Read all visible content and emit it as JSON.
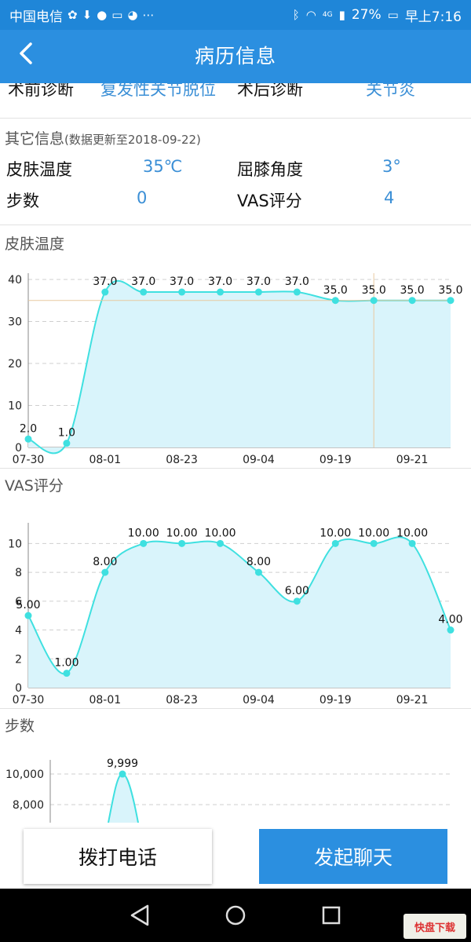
{
  "status_bar": {
    "carrier": "中国电信",
    "battery": "27%",
    "network": "4G",
    "time": "早上7:16"
  },
  "header": {
    "back_icon": "chevron-left-icon",
    "title": "病历信息"
  },
  "diagnosis": {
    "pre_label": "术前诊断",
    "pre_value": "复发性关节脱位",
    "post_label": "术后诊断",
    "post_value": "关节炎"
  },
  "other_info": {
    "title": "其它信息",
    "update_note": "(数据更新至2018-09-22)",
    "items": [
      {
        "label": "皮肤温度",
        "value": "35℃"
      },
      {
        "label": "屈膝角度",
        "value": "3°"
      },
      {
        "label": "步数",
        "value": "0"
      },
      {
        "label": "VAS评分",
        "value": "4"
      }
    ]
  },
  "charts": {
    "skin_temp_title": "皮肤温度",
    "vas_title": "VAS评分",
    "steps_title": "步数"
  },
  "chart_data": [
    {
      "type": "area",
      "title": "皮肤温度",
      "x_tick_labels": [
        "07-30",
        "08-01",
        "08-23",
        "09-04",
        "09-19",
        "09-21"
      ],
      "values": [
        2.0,
        1.0,
        37.0,
        37.0,
        37.0,
        37.0,
        37.0,
        37.0,
        35.0,
        35.0,
        35.0,
        35.0
      ],
      "data_labels": [
        "2.0",
        "1.0",
        "37.0",
        "37.0",
        "37.0",
        "37.0",
        "37.0",
        "37.0",
        "35.0",
        "35.0",
        "35.0",
        "35.0"
      ],
      "yticks": [
        "0",
        "10",
        "20",
        "30",
        "40"
      ],
      "ylim": [
        0,
        40
      ],
      "grid": true,
      "highlight_index": 9,
      "colors": {
        "line": "#3fe0e0",
        "fill": "#d9f4fb",
        "crosshair": "#e8c9a0"
      }
    },
    {
      "type": "area",
      "title": "VAS评分",
      "x_tick_labels": [
        "07-30",
        "08-01",
        "08-23",
        "09-04",
        "09-19",
        "09-21"
      ],
      "values": [
        5.0,
        1.0,
        8.0,
        10.0,
        10.0,
        10.0,
        8.0,
        6.0,
        10.0,
        10.0,
        10.0,
        4.0
      ],
      "data_labels": [
        "5.00",
        "1.00",
        "8.00",
        "10.00",
        "10.00",
        "10.00",
        "8.00",
        "6.00",
        "10.00",
        "10.00",
        "10.00",
        "4.00"
      ],
      "yticks": [
        "0",
        "2",
        "4",
        "6",
        "8",
        "10"
      ],
      "ylim": [
        0,
        11
      ],
      "grid": true,
      "colors": {
        "line": "#3fe0e0",
        "fill": "#d9f4fb"
      }
    },
    {
      "type": "area",
      "title": "步数",
      "visible_yticks": [
        "8,000",
        "10,000"
      ],
      "peak_label": "9,999",
      "peak_value": 9999,
      "ylim": [
        8000,
        10000
      ],
      "grid": true,
      "colors": {
        "line": "#3fe0e0",
        "fill": "#d9f4fb"
      }
    }
  ],
  "bottom_actions": {
    "call_label": "拨打电话",
    "chat_label": "发起聊天"
  },
  "system_nav": {
    "back_icon": "triangle-back-icon",
    "home_icon": "circle-home-icon",
    "recent_icon": "square-recent-icon"
  },
  "watermark_text": "快盘下载"
}
